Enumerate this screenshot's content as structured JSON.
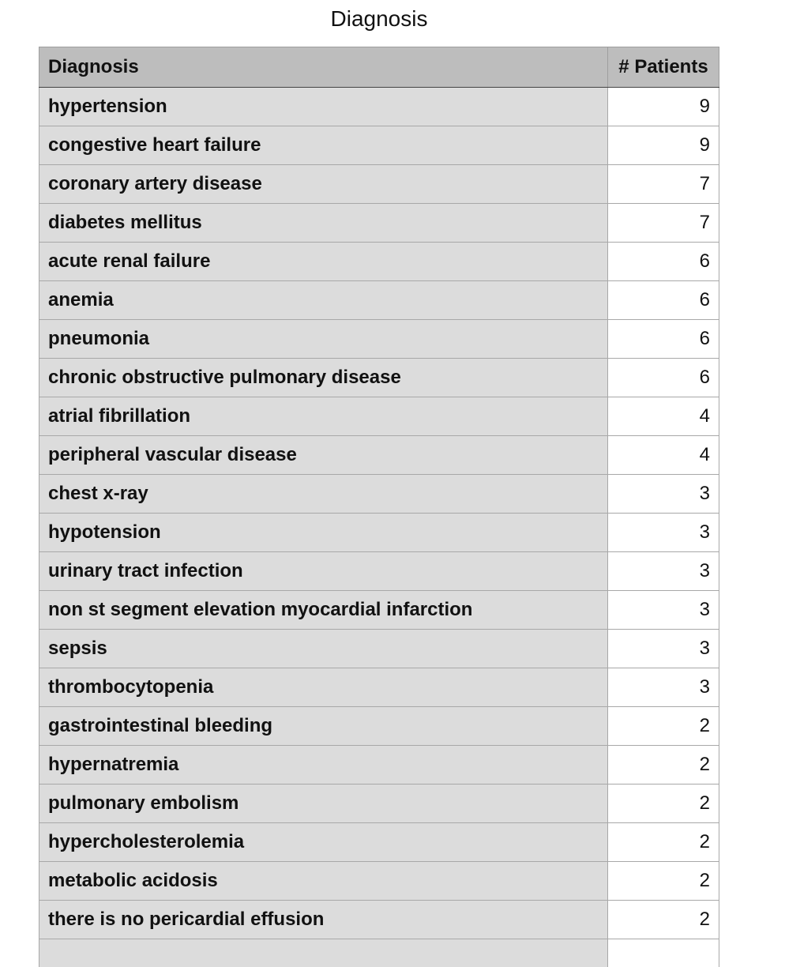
{
  "title": "Diagnosis",
  "table": {
    "headers": [
      "Diagnosis",
      "# Patients"
    ],
    "rows": [
      {
        "diagnosis": "hypertension",
        "patients": "9"
      },
      {
        "diagnosis": "congestive heart failure",
        "patients": "9"
      },
      {
        "diagnosis": "coronary artery disease",
        "patients": "7"
      },
      {
        "diagnosis": "diabetes mellitus",
        "patients": "7"
      },
      {
        "diagnosis": "acute renal failure",
        "patients": "6"
      },
      {
        "diagnosis": "anemia",
        "patients": "6"
      },
      {
        "diagnosis": "pneumonia",
        "patients": "6"
      },
      {
        "diagnosis": "chronic obstructive pulmonary disease",
        "patients": "6"
      },
      {
        "diagnosis": "atrial fibrillation",
        "patients": "4"
      },
      {
        "diagnosis": "peripheral vascular disease",
        "patients": "4"
      },
      {
        "diagnosis": "chest x-ray",
        "patients": "3"
      },
      {
        "diagnosis": "hypotension",
        "patients": "3"
      },
      {
        "diagnosis": "urinary tract infection",
        "patients": "3"
      },
      {
        "diagnosis": "non st segment elevation myocardial infarction",
        "patients": "3"
      },
      {
        "diagnosis": "sepsis",
        "patients": "3"
      },
      {
        "diagnosis": "thrombocytopenia",
        "patients": "3"
      },
      {
        "diagnosis": "gastrointestinal bleeding",
        "patients": "2"
      },
      {
        "diagnosis": "hypernatremia",
        "patients": "2"
      },
      {
        "diagnosis": "pulmonary embolism",
        "patients": "2"
      },
      {
        "diagnosis": "hypercholesterolemia",
        "patients": "2"
      },
      {
        "diagnosis": "metabolic acidosis",
        "patients": "2"
      },
      {
        "diagnosis": "there is no pericardial effusion",
        "patients": "2"
      },
      {
        "diagnosis": "",
        "patients": ""
      }
    ]
  }
}
